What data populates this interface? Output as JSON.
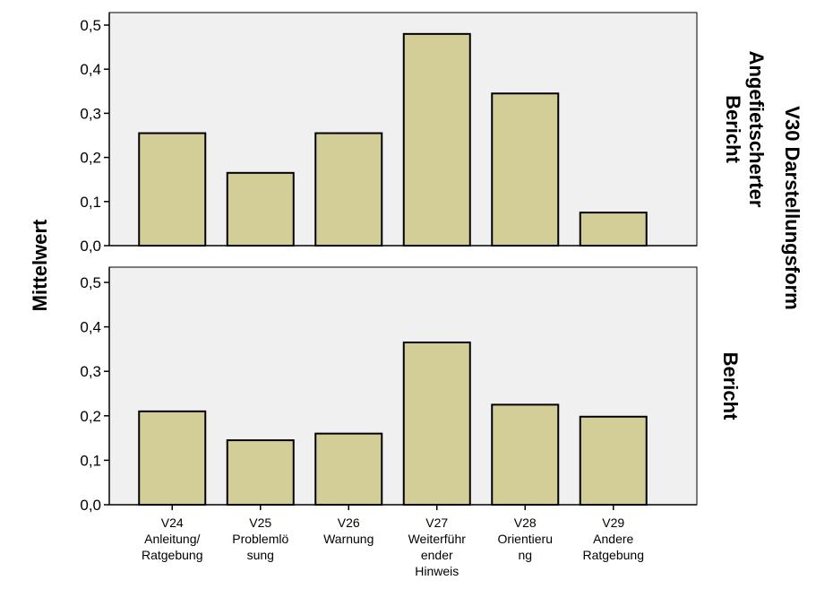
{
  "chart_data": {
    "type": "bar",
    "categories": [
      [
        "V24",
        "Anleitung/",
        "Ratgebung"
      ],
      [
        "V25",
        "Problemlö",
        "sung"
      ],
      [
        "V26",
        "Warnung"
      ],
      [
        "V27",
        "Weiterführ",
        "ender",
        "Hinweis"
      ],
      [
        "V28",
        "Orientieru",
        "ng"
      ],
      [
        "V29",
        "Andere",
        "Ratgebung"
      ]
    ],
    "ylabel": "Mittelwert",
    "facet_title": "V30 Darstellungsform",
    "ylim": [
      0,
      0.5
    ],
    "yticks": [
      "0,0",
      "0,1",
      "0,2",
      "0,3",
      "0,4",
      "0,5"
    ],
    "bar_color": "#d3cd98",
    "panel_bg": "#f0f0f0",
    "panels": [
      {
        "label": [
          "Angefietscherter",
          "Bericht"
        ],
        "values": [
          0.255,
          0.165,
          0.255,
          0.48,
          0.345,
          0.075
        ]
      },
      {
        "label": [
          "Bericht"
        ],
        "values": [
          0.21,
          0.145,
          0.16,
          0.365,
          0.225,
          0.198
        ]
      }
    ]
  }
}
